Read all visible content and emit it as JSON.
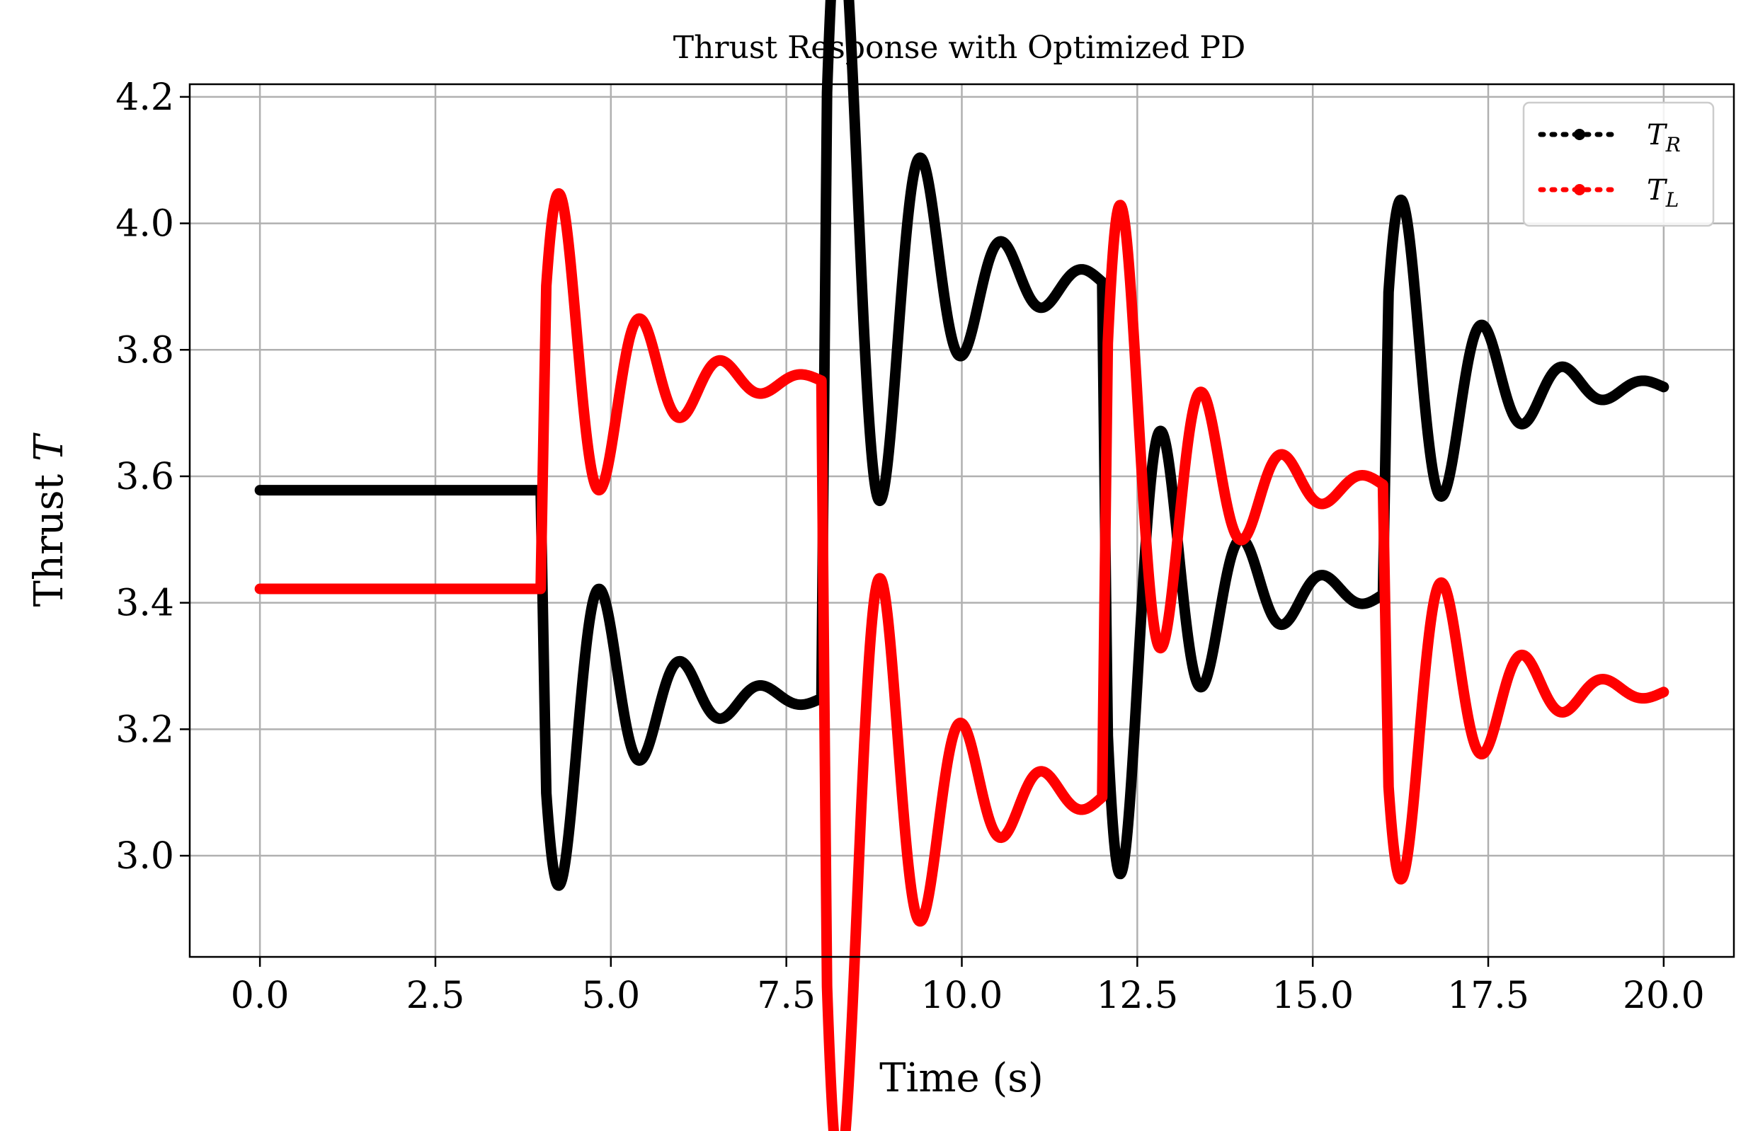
{
  "chart_data": {
    "type": "line",
    "title": "Thrust Response with Optimized PD",
    "xlabel": "Time (s)",
    "ylabel_text": "Thrust ",
    "ylabel_symbol": "T",
    "xlim": [
      -1.0,
      21.0
    ],
    "ylim": [
      2.84,
      4.22
    ],
    "xticks": [
      0.0,
      2.5,
      5.0,
      7.5,
      10.0,
      12.5,
      15.0,
      17.5,
      20.0
    ],
    "xtick_labels": [
      "0.0",
      "2.5",
      "5.0",
      "7.5",
      "10.0",
      "12.5",
      "15.0",
      "17.5",
      "20.0"
    ],
    "yticks": [
      3.0,
      3.2,
      3.4,
      3.6,
      3.8,
      4.0,
      4.2
    ],
    "ytick_labels": [
      "3.0",
      "3.2",
      "3.4",
      "3.6",
      "3.8",
      "4.0",
      "4.2"
    ],
    "grid": true,
    "legend_position": "top-right",
    "series": [
      {
        "name": "T_R",
        "legend_main": "T",
        "legend_sub": "R",
        "color": "#000000",
        "segments": [
          {
            "t0": 0,
            "t1": 4,
            "start": 3.578,
            "end": 3.578,
            "amp": 0,
            "tau": 1,
            "period": 1.15
          },
          {
            "t0": 4,
            "t1": 8,
            "start": 3.578,
            "end": 3.25,
            "amp": -0.385,
            "tau": 1.05,
            "period": 1.15
          },
          {
            "t0": 8,
            "t1": 12,
            "start": 3.25,
            "end": 3.905,
            "amp": 0.77,
            "tau": 1.05,
            "period": 1.15
          },
          {
            "t0": 12,
            "t1": 16,
            "start": 3.905,
            "end": 3.415,
            "amp": -0.575,
            "tau": 1.05,
            "period": 1.15
          },
          {
            "t0": 16,
            "t1": 20,
            "start": 3.415,
            "end": 3.74,
            "amp": 0.385,
            "tau": 1.05,
            "period": 1.15
          }
        ]
      },
      {
        "name": "T_L",
        "legend_main": "T",
        "legend_sub": "L",
        "color": "#ff0000",
        "segments": [
          {
            "t0": 0,
            "t1": 4,
            "start": 3.422,
            "end": 3.422,
            "amp": 0,
            "tau": 1,
            "period": 1.15
          },
          {
            "t0": 4,
            "t1": 8,
            "start": 3.422,
            "end": 3.75,
            "amp": 0.385,
            "tau": 1.05,
            "period": 1.15
          },
          {
            "t0": 8,
            "t1": 12,
            "start": 3.75,
            "end": 3.095,
            "amp": -0.77,
            "tau": 1.05,
            "period": 1.15
          },
          {
            "t0": 12,
            "t1": 16,
            "start": 3.095,
            "end": 3.585,
            "amp": 0.575,
            "tau": 1.05,
            "period": 1.15
          },
          {
            "t0": 16,
            "t1": 20,
            "start": 3.585,
            "end": 3.26,
            "amp": -0.385,
            "tau": 1.05,
            "period": 1.15
          }
        ]
      }
    ]
  }
}
